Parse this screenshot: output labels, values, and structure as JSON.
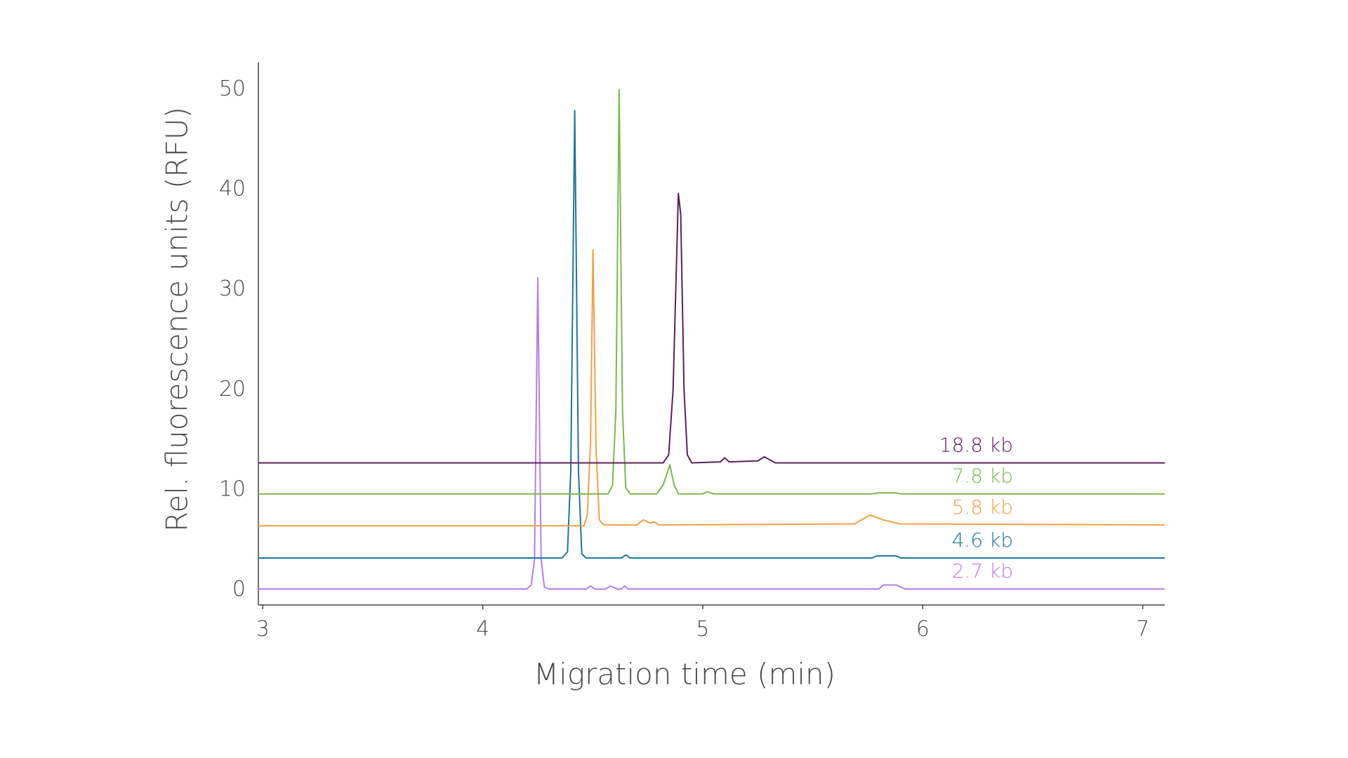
{
  "chart_data": {
    "type": "line",
    "x_label": "Migration time (min)",
    "y_label": "Rel. fluorescence units (RFU)",
    "xlim": [
      2.98,
      7.1
    ],
    "ylim": [
      -1.5,
      52.7
    ],
    "xticks": [
      3,
      4,
      5,
      6,
      7
    ],
    "yticks": [
      0,
      10,
      20,
      30,
      40,
      50
    ],
    "grid": false,
    "series": [
      {
        "name": "2.7 kb",
        "color": "#b67de6",
        "x": [
          2.98,
          4.2,
          4.22,
          4.235,
          4.25,
          4.265,
          4.28,
          4.3,
          4.47,
          4.49,
          4.51,
          4.56,
          4.58,
          4.61,
          4.63,
          4.645,
          4.66,
          5.8,
          5.82,
          5.88,
          5.92,
          7.1
        ],
        "values": [
          0.1,
          0.1,
          0.5,
          3,
          31.2,
          3,
          0.3,
          0.1,
          0.1,
          0.4,
          0.1,
          0.1,
          0.4,
          0.1,
          0.1,
          0.4,
          0.1,
          0.1,
          0.5,
          0.5,
          0.1,
          0.1
        ]
      },
      {
        "name": "4.6 kb",
        "color": "#1b7898",
        "x": [
          2.98,
          4.36,
          4.385,
          4.4,
          4.418,
          4.435,
          4.45,
          4.47,
          4.63,
          4.65,
          4.67,
          5.77,
          5.79,
          5.88,
          5.9,
          7.1
        ],
        "values": [
          3.2,
          3.2,
          3.8,
          12,
          47.9,
          12,
          3.6,
          3.2,
          3.2,
          3.5,
          3.2,
          3.2,
          3.4,
          3.4,
          3.2,
          3.2
        ]
      },
      {
        "name": "5.8 kb",
        "color": "#f0a043",
        "x": [
          2.98,
          4.46,
          4.475,
          4.49,
          4.501,
          4.515,
          4.53,
          4.55,
          4.7,
          4.73,
          4.76,
          4.78,
          4.8,
          5.69,
          5.76,
          5.82,
          5.9,
          7.1
        ],
        "values": [
          6.4,
          6.4,
          7.5,
          15,
          34.0,
          14,
          7,
          6.5,
          6.5,
          7.0,
          6.7,
          6.8,
          6.5,
          6.6,
          7.5,
          7.0,
          6.6,
          6.5
        ]
      },
      {
        "name": "7.8 kb",
        "color": "#7cb84a",
        "x": [
          2.98,
          4.57,
          4.59,
          4.605,
          4.62,
          4.635,
          4.65,
          4.67,
          4.79,
          4.82,
          4.85,
          4.87,
          4.89,
          5.0,
          5.02,
          5.05,
          5.77,
          5.8,
          5.88,
          5.9,
          7.1
        ],
        "values": [
          9.6,
          9.6,
          10.5,
          18,
          50.0,
          18,
          10.2,
          9.6,
          9.6,
          10.5,
          12.5,
          10.5,
          9.6,
          9.6,
          9.8,
          9.6,
          9.6,
          9.7,
          9.7,
          9.6,
          9.6
        ]
      },
      {
        "name": "18.8 kb",
        "color": "#5d1f5b",
        "x": [
          2.98,
          4.82,
          4.845,
          4.865,
          4.889,
          4.9,
          4.915,
          4.93,
          4.95,
          5.08,
          5.1,
          5.12,
          5.25,
          5.28,
          5.33,
          7.1
        ],
        "values": [
          12.7,
          12.7,
          13.5,
          20,
          39.6,
          37.5,
          20,
          13.5,
          12.7,
          12.8,
          13.2,
          12.8,
          12.9,
          13.3,
          12.7,
          12.7
        ]
      }
    ]
  }
}
